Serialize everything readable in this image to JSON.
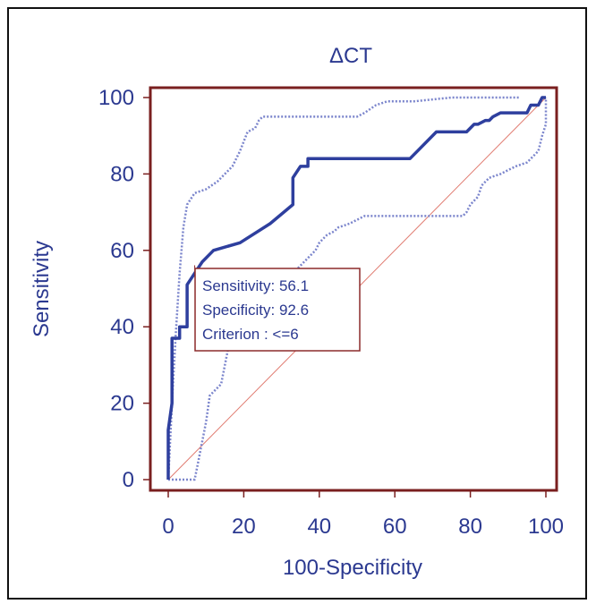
{
  "chart_data": {
    "type": "line",
    "title": "ΔCT",
    "xlabel": "100-Specificity",
    "ylabel": "Sensitivity",
    "xlim": [
      0,
      100
    ],
    "ylim": [
      0,
      100
    ],
    "xticks": [
      "0",
      "20",
      "40",
      "60",
      "80",
      "100"
    ],
    "yticks": [
      "0",
      "20",
      "40",
      "60",
      "80",
      "100"
    ],
    "series": [
      {
        "role": "roc-curve",
        "x": [
          0,
          0,
          1,
          1,
          3,
          3,
          5,
          5,
          7,
          9,
          12,
          19,
          27,
          33,
          33,
          35,
          37,
          37,
          42,
          53,
          64,
          66,
          71,
          79,
          81,
          82,
          84,
          85,
          86,
          88,
          95,
          96,
          98,
          99,
          100
        ],
        "y": [
          0,
          13,
          20,
          37,
          37,
          40,
          40,
          51,
          54,
          57,
          60,
          62,
          67,
          72,
          79,
          82,
          82,
          84,
          84,
          84,
          84,
          86,
          91,
          91,
          93,
          93,
          94,
          94,
          95,
          96,
          96,
          98,
          98,
          100,
          100
        ]
      },
      {
        "role": "upper-confidence-bound",
        "x": [
          0,
          1,
          2,
          3,
          4,
          5,
          7,
          10,
          13,
          17,
          19,
          21,
          23,
          24,
          25,
          26,
          30,
          40,
          50,
          52,
          55,
          58,
          65,
          75,
          85,
          93
        ],
        "y": [
          0,
          20,
          38,
          54,
          66,
          72,
          75,
          76,
          78,
          82,
          86,
          91,
          92,
          94,
          95,
          95,
          95,
          95,
          95,
          96,
          98,
          99,
          99,
          100,
          100,
          100
        ]
      },
      {
        "role": "lower-confidence-bound",
        "x": [
          0,
          7,
          8,
          10,
          11,
          12,
          13,
          14,
          15,
          16,
          18,
          20,
          22,
          24,
          26,
          28,
          30,
          33,
          35,
          37,
          39,
          40,
          42,
          44,
          45,
          48,
          50,
          52,
          55,
          60,
          65,
          70,
          75,
          78,
          79,
          80,
          82,
          83,
          85,
          88,
          90,
          92,
          95,
          97,
          98,
          99,
          100,
          100
        ],
        "y": [
          0,
          0,
          5,
          15,
          22,
          23,
          24,
          25,
          30,
          35,
          38,
          40,
          43,
          46,
          48,
          50,
          52,
          54,
          56,
          58,
          60,
          62,
          64,
          65,
          66,
          67,
          68,
          69,
          69,
          69,
          69,
          69,
          69,
          69,
          70,
          72,
          74,
          77,
          79,
          80,
          81,
          82,
          83,
          85,
          86,
          90,
          93,
          100
        ]
      }
    ],
    "reference_line": {
      "x": [
        0,
        100
      ],
      "y": [
        0,
        100
      ]
    },
    "annotation": {
      "lines": [
        "Sensitivity: 56.1",
        "Specificity: 92.6",
        "Criterion : <=6"
      ],
      "anchor_x": 7,
      "anchor_y": 56.1
    },
    "colors": {
      "roc": "#2e3f9e",
      "ci": "#7b85cc",
      "reference": "#e07a6f",
      "axis": "#7a1f1f",
      "text": "#2b3990",
      "box_border": "#8b2a2a"
    }
  }
}
